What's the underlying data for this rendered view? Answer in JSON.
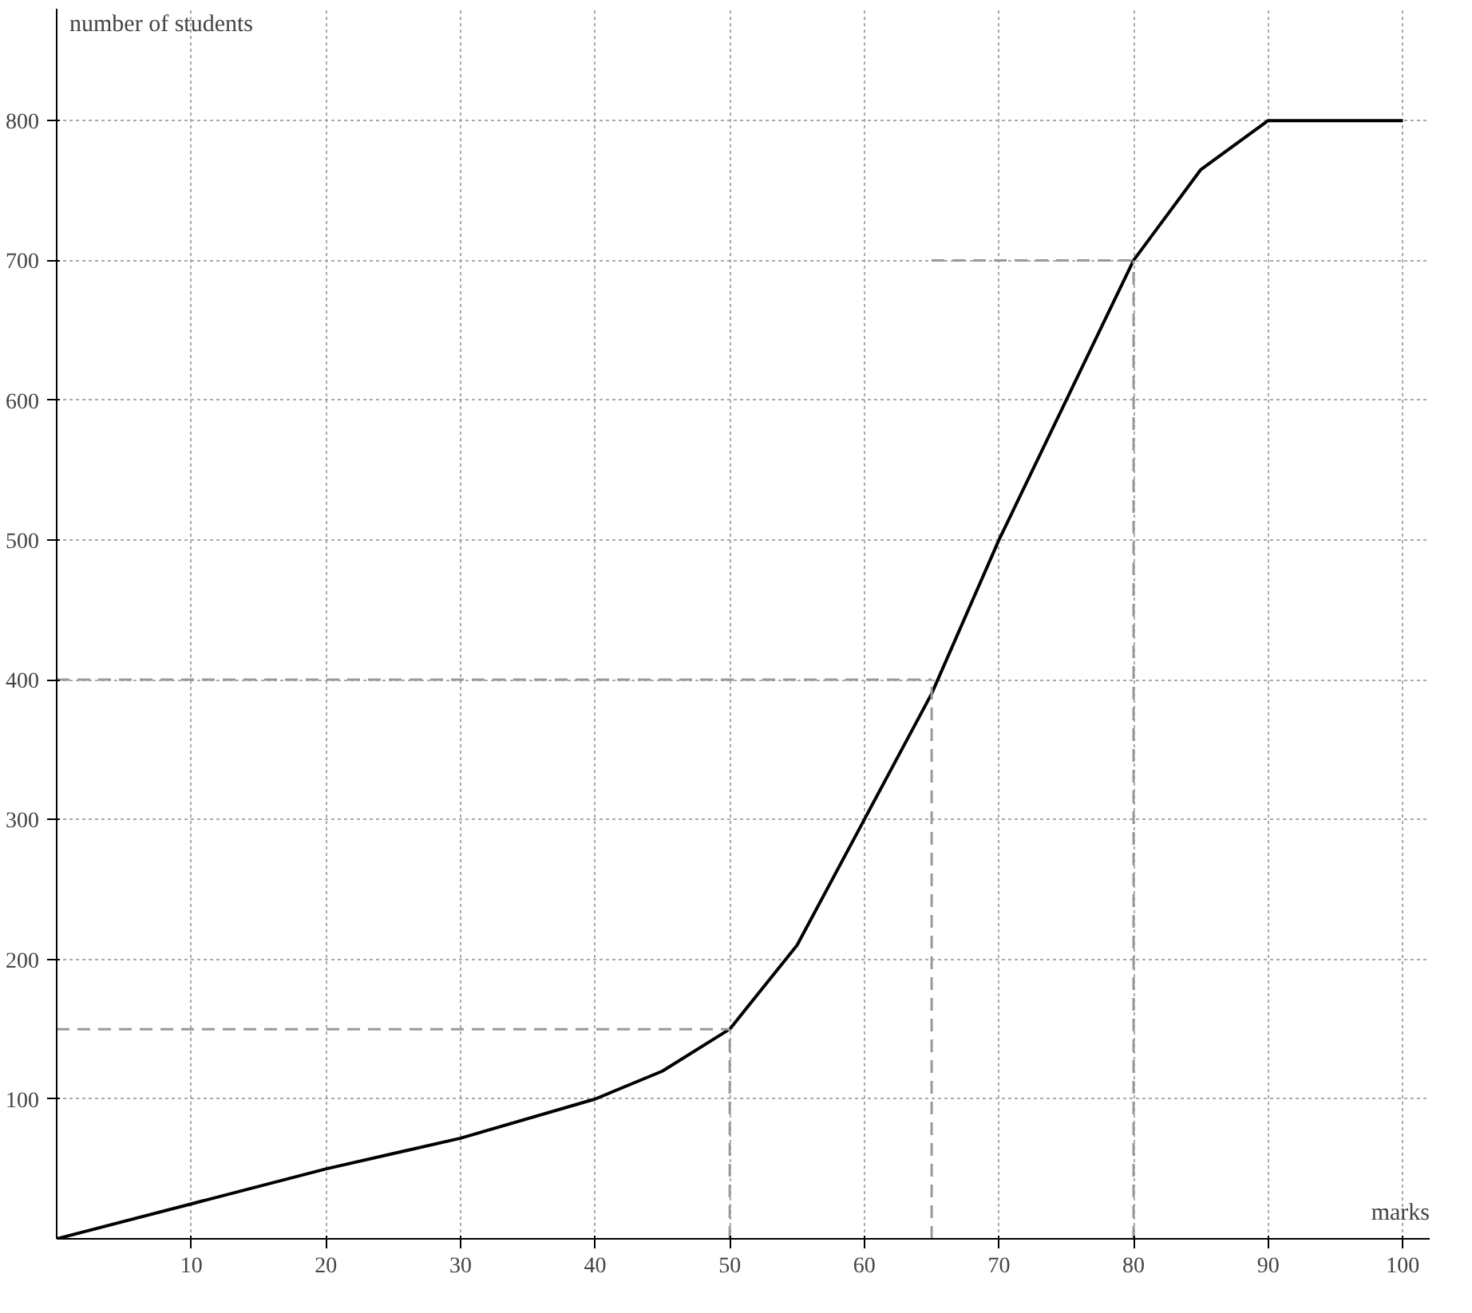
{
  "chart_data": {
    "type": "line",
    "xlabel": "marks",
    "ylabel": "number of students",
    "x": [
      0,
      10,
      20,
      30,
      40,
      45,
      50,
      55,
      60,
      65,
      70,
      75,
      80,
      85,
      90,
      100
    ],
    "series": [
      {
        "color": "#000000",
        "values": [
          0,
          25,
          50,
          72,
          100,
          120,
          150,
          210,
          300,
          390,
          500,
          600,
          700,
          765,
          800,
          800
        ]
      },
      {
        "color": "#999999",
        "line_style": "dashed",
        "x": [
          0,
          65
        ],
        "values": [
          400,
          400
        ]
      },
      {
        "color": "#999999",
        "line_style": "dashed",
        "x": [
          65,
          65
        ],
        "values": [
          0,
          400
        ]
      },
      {
        "color": "#999999",
        "line_style": "dashed",
        "x": [
          0,
          50
        ],
        "values": [
          150,
          150
        ]
      },
      {
        "color": "#999999",
        "line_style": "dashed",
        "x": [
          50,
          50
        ],
        "values": [
          0,
          150
        ]
      },
      {
        "color": "#999999",
        "line_style": "dashed",
        "x": [
          65,
          80
        ],
        "values": [
          700,
          700
        ]
      },
      {
        "color": "#999999",
        "line_style": "dashed",
        "x": [
          80,
          80
        ],
        "values": [
          0,
          700
        ]
      }
    ],
    "xlim": [
      0,
      102
    ],
    "ylim": [
      0,
      880
    ],
    "xticks": [
      10,
      20,
      30,
      40,
      50,
      60,
      70,
      80,
      90,
      100
    ],
    "yticks": [
      100,
      200,
      300,
      400,
      500,
      600,
      700,
      800
    ],
    "grid": true,
    "marker": "none",
    "line_style": "solid"
  }
}
